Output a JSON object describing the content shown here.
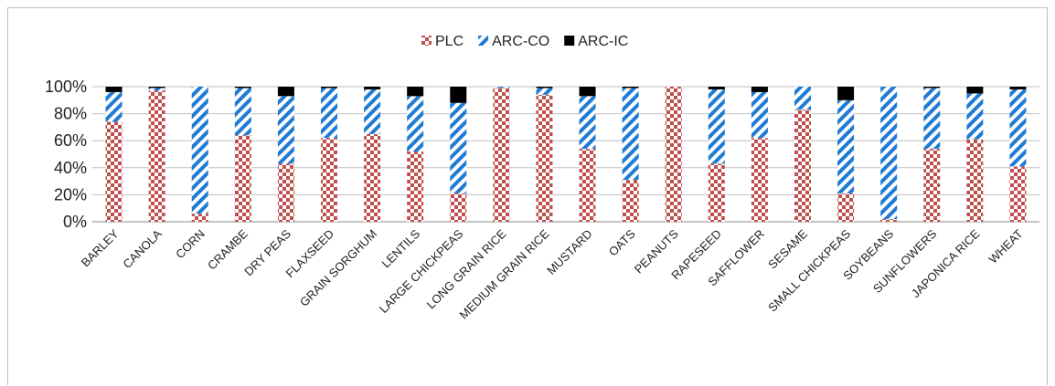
{
  "chart_data": {
    "type": "bar",
    "stacked": true,
    "percent": true,
    "title": "",
    "xlabel": "",
    "ylabel": "",
    "ylim": [
      0,
      100
    ],
    "y_ticks": [
      "0%",
      "20%",
      "40%",
      "60%",
      "80%",
      "100%"
    ],
    "grid": true,
    "legend_position": "top",
    "categories": [
      "BARLEY",
      "CANOLA",
      "CORN",
      "CRAMBE",
      "DRY PEAS",
      "FLAXSEED",
      "GRAIN SORGHUM",
      "LENTILS",
      "LARGE CHICKPEAS",
      "LONG GRAIN RICE",
      "MEDIUM GRAIN RICE",
      "MUSTARD",
      "OATS",
      "PEANUTS",
      "RAPESEED",
      "SAFFLOWER",
      "SESAME",
      "SMALL CHICKPEAS",
      "SOYBEANS",
      "SUNFLOWERS",
      "JAPONICA RICE",
      "WHEAT"
    ],
    "series": [
      {
        "name": "PLC",
        "color": "#c0504d",
        "pattern": "checker",
        "values": [
          74,
          97,
          6,
          64,
          43,
          62,
          65,
          52,
          21,
          99,
          94,
          54,
          31,
          100,
          43,
          62,
          83,
          21,
          2,
          54,
          61,
          41
        ]
      },
      {
        "name": "ARC-CO",
        "color": "#1f7bd3",
        "pattern": "diagonal",
        "values": [
          22,
          2,
          94,
          35,
          50,
          37,
          33,
          41,
          67,
          1,
          5,
          39,
          68,
          0,
          55,
          34,
          17,
          69,
          98,
          45,
          34,
          57
        ]
      },
      {
        "name": "ARC-IC",
        "color": "#000000",
        "pattern": "solid",
        "values": [
          4,
          1,
          0,
          1,
          7,
          1,
          2,
          7,
          12,
          0,
          1,
          7,
          1,
          0,
          2,
          4,
          0,
          10,
          0,
          1,
          5,
          2
        ]
      }
    ]
  }
}
